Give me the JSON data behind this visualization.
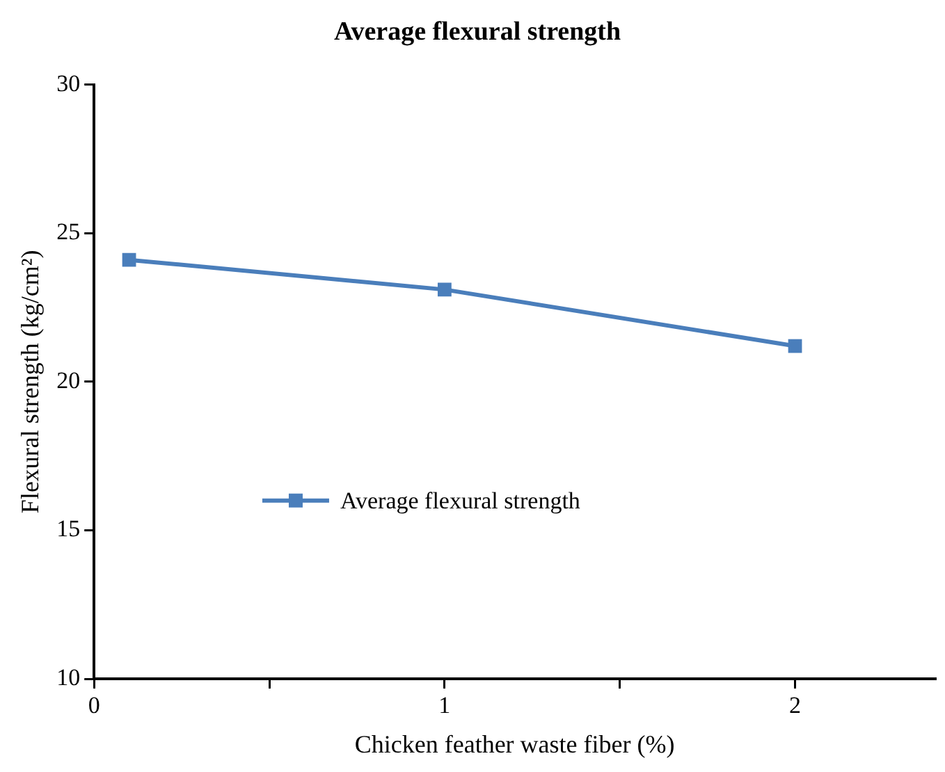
{
  "chart_data": {
    "type": "line",
    "title": "Average flexural strength",
    "xlabel": "Chicken feather waste fiber (%)",
    "ylabel": "Flexural strength (kg/cm²)",
    "x": [
      0.1,
      1,
      2
    ],
    "series": [
      {
        "name": "Average flexural strength",
        "color": "#4a7ebb",
        "values": [
          24.1,
          23.1,
          21.2
        ]
      }
    ],
    "xlim": [
      0,
      2.4
    ],
    "xticks": [
      0,
      {
        "value": 0.5,
        "label": null
      },
      1,
      {
        "value": 1.5,
        "label": null
      },
      2
    ],
    "ylim": [
      10,
      30
    ],
    "yticks": [
      10,
      15,
      20,
      25,
      30
    ],
    "grid": false,
    "legend": "left",
    "marker": "square",
    "line_style": "solid"
  }
}
